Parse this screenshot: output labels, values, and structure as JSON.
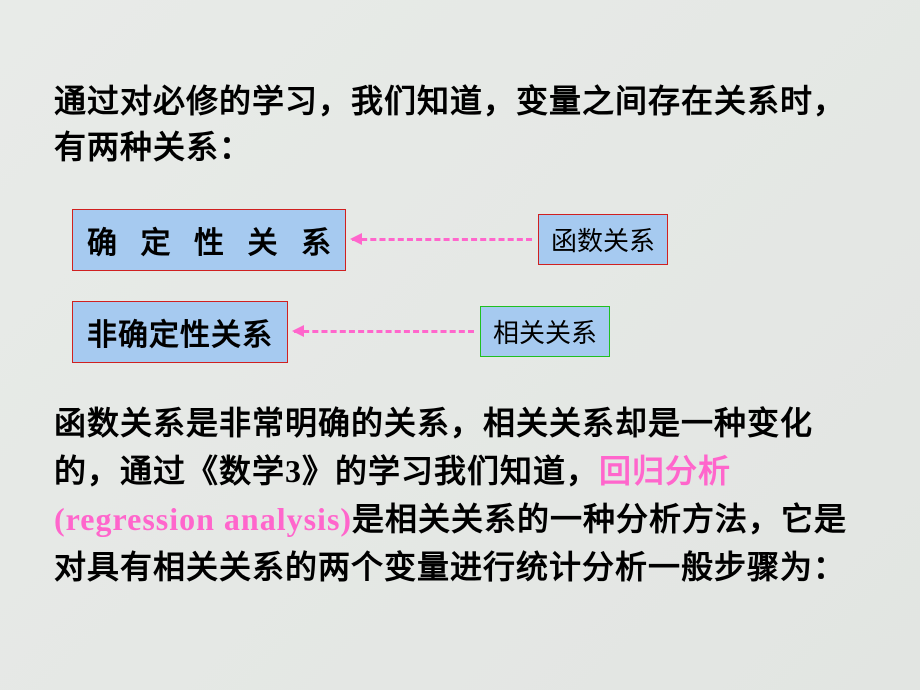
{
  "intro": "通过对必修的学习，我们知道，变量之间存在关系时，有两种关系：",
  "row1": {
    "left": "确 定 性 关 系",
    "right": "函数关系"
  },
  "row2": {
    "left": "非确定性关系",
    "right": "相关关系"
  },
  "body": {
    "part1": "函数关系是非常明确的关系，相关关系却是一种变化的，通过《数学3》的学习我们知道，",
    "pink": "回归分析(regression analysis)",
    "part2": "是相关关系的一种分析方法，它是对具有相关关系的两个变量进行统计分析一般步骤为："
  },
  "colors": {
    "background": "#e5e8e5",
    "box_fill": "#a6caf0",
    "border_red": "#d02020",
    "border_green": "#20c020",
    "arrow_pink": "#ff66cc",
    "text_pink": "#ff66cc",
    "text_black": "#000000"
  }
}
